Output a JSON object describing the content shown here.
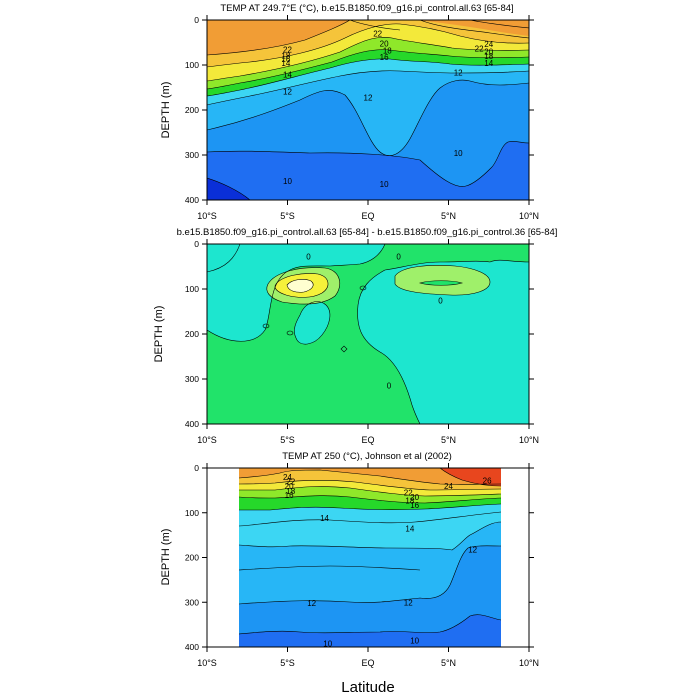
{
  "figure": {
    "xlabel": "Latitude",
    "colors": {
      "c_blue_dark": "#0a2fd8",
      "c_blue": "#1f6ef2",
      "c_blue_mid": "#1d95f3",
      "c_blue_light": "#27b6f6",
      "c_cyan": "#3cd6f3",
      "c_green": "#26d82a",
      "c_lime": "#8fe82a",
      "c_yellow": "#f3e93a",
      "c_gold": "#f5c43a",
      "c_orange": "#f19d35",
      "c_orange_dark": "#ec7d2a",
      "c_red": "#e8461e",
      "d_cyan": "#1de6cf",
      "d_green": "#21e36a",
      "d_lime": "#9ff06a",
      "d_yellow": "#f5f13a",
      "d_white": "#ffffd0",
      "contour": "#000000",
      "frame": "#000000"
    }
  },
  "chart_data": [
    {
      "type": "contour",
      "title": "TEMP AT 249.7°E (°C), b.e15.B1850.f09_g16.pi_control.all.63 [65-84]",
      "ylabel": "DEPTH (m)",
      "xlim": [
        -10,
        10
      ],
      "ylim": [
        400,
        0
      ],
      "x_tick_values": [
        -10,
        -5,
        0,
        5,
        10
      ],
      "x_tick_labels": [
        "10°S",
        "5°S",
        "EQ",
        "5°N",
        "10°N"
      ],
      "y_tick_values": [
        0,
        100,
        200,
        300,
        400
      ],
      "y_tick_labels": [
        "0",
        "100",
        "200",
        "300",
        "400"
      ],
      "contour_labels": [
        {
          "text": "22",
          "lat": 0.6,
          "depth": 30
        },
        {
          "text": "22",
          "lat": -5.0,
          "depth": 65
        },
        {
          "text": "20",
          "lat": 1.0,
          "depth": 52
        },
        {
          "text": "18",
          "lat": -5.1,
          "depth": 79
        },
        {
          "text": "18",
          "lat": 1.2,
          "depth": 68
        },
        {
          "text": "16",
          "lat": -5.1,
          "depth": 87
        },
        {
          "text": "16",
          "lat": 1.0,
          "depth": 82
        },
        {
          "text": "14",
          "lat": -5.1,
          "depth": 95
        },
        {
          "text": "14",
          "lat": -5.0,
          "depth": 121
        },
        {
          "text": "14",
          "lat": 7.5,
          "depth": 96
        },
        {
          "text": "12",
          "lat": -5.0,
          "depth": 159
        },
        {
          "text": "12",
          "lat": 0.0,
          "depth": 172
        },
        {
          "text": "12",
          "lat": 5.6,
          "depth": 117
        },
        {
          "text": "10",
          "lat": -5.0,
          "depth": 358
        },
        {
          "text": "10",
          "lat": 1.0,
          "depth": 364
        },
        {
          "text": "10",
          "lat": 5.6,
          "depth": 295
        },
        {
          "text": "24",
          "lat": 7.5,
          "depth": 53
        },
        {
          "text": "22",
          "lat": 6.9,
          "depth": 63
        },
        {
          "text": "20",
          "lat": 7.5,
          "depth": 70
        },
        {
          "text": "18",
          "lat": 7.5,
          "depth": 80
        }
      ]
    },
    {
      "type": "contour",
      "title": "b.e15.B1850.f09_g16.pi_control.all.63 [65-84] - b.e15.B1850.f09_g16.pi_control.36 [65-84]",
      "ylabel": "DEPTH (m)",
      "xlim": [
        -10,
        10
      ],
      "ylim": [
        400,
        0
      ],
      "x_tick_values": [
        -10,
        -5,
        0,
        5,
        10
      ],
      "x_tick_labels": [
        "10°S",
        "5°S",
        "EQ",
        "5°N",
        "10°N"
      ],
      "y_tick_values": [
        0,
        100,
        200,
        300,
        400
      ],
      "y_tick_labels": [
        "0",
        "100",
        "200",
        "300",
        "400"
      ],
      "contour_labels": [
        {
          "text": "0",
          "lat": -3.7,
          "depth": 28
        },
        {
          "text": "0",
          "lat": 1.9,
          "depth": 28
        },
        {
          "text": "0",
          "lat": 4.5,
          "depth": 126
        },
        {
          "text": "0",
          "lat": 1.3,
          "depth": 314
        }
      ]
    },
    {
      "type": "contour",
      "title": "TEMP AT 250 (°C), Johnson et al (2002)",
      "ylabel": "DEPTH (m)",
      "xlabel": "Latitude",
      "xlim": [
        -10,
        10
      ],
      "ylim": [
        400,
        0
      ],
      "x_tick_values": [
        -10,
        -5,
        0,
        5,
        10
      ],
      "x_tick_labels": [
        "10°S",
        "5°S",
        "EQ",
        "5°N",
        "10°N"
      ],
      "y_tick_values": [
        0,
        100,
        200,
        300,
        400
      ],
      "y_tick_labels": [
        "0",
        "100",
        "200",
        "300",
        "400"
      ],
      "data_lat_range": [
        -8,
        8
      ],
      "contour_labels": [
        {
          "text": "24",
          "lat": -5.0,
          "depth": 20
        },
        {
          "text": "22",
          "lat": -4.8,
          "depth": 30
        },
        {
          "text": "20",
          "lat": -4.9,
          "depth": 40
        },
        {
          "text": "18",
          "lat": -4.8,
          "depth": 51
        },
        {
          "text": "16",
          "lat": -4.9,
          "depth": 60
        },
        {
          "text": "22",
          "lat": 2.5,
          "depth": 55
        },
        {
          "text": "20",
          "lat": 2.9,
          "depth": 65
        },
        {
          "text": "18",
          "lat": 2.6,
          "depth": 73
        },
        {
          "text": "16",
          "lat": 2.9,
          "depth": 83
        },
        {
          "text": "14",
          "lat": -2.7,
          "depth": 112
        },
        {
          "text": "14",
          "lat": 2.6,
          "depth": 135
        },
        {
          "text": "12",
          "lat": 6.5,
          "depth": 182
        },
        {
          "text": "12",
          "lat": 2.5,
          "depth": 300
        },
        {
          "text": "12",
          "lat": -3.5,
          "depth": 302
        },
        {
          "text": "24",
          "lat": 5.0,
          "depth": 40
        },
        {
          "text": "26",
          "lat": 7.4,
          "depth": 28
        },
        {
          "text": "10",
          "lat": -2.5,
          "depth": 392
        },
        {
          "text": "10",
          "lat": 2.9,
          "depth": 385
        }
      ]
    }
  ]
}
